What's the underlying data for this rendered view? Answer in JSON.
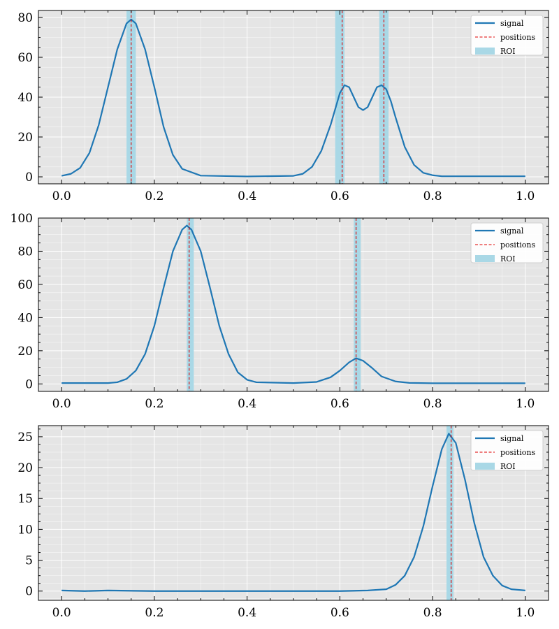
{
  "chart_data": [
    {
      "type": "line",
      "xlim": [
        -0.05,
        1.05
      ],
      "ylim": [
        -3.5,
        83.5
      ],
      "xticks": [
        "0.0",
        "0.2",
        "0.4",
        "0.6",
        "0.8",
        "1.0"
      ],
      "yticks": [
        "0",
        "20",
        "40",
        "60",
        "80"
      ],
      "grid": true,
      "legend": {
        "placement": "top-right",
        "entries": [
          "signal",
          "positions",
          "ROI"
        ]
      },
      "signal": {
        "name": "signal",
        "x": [
          0.0,
          0.02,
          0.04,
          0.06,
          0.08,
          0.1,
          0.12,
          0.14,
          0.15,
          0.16,
          0.18,
          0.2,
          0.22,
          0.24,
          0.26,
          0.3,
          0.4,
          0.5,
          0.52,
          0.54,
          0.56,
          0.58,
          0.59,
          0.6,
          0.61,
          0.62,
          0.63,
          0.64,
          0.65,
          0.66,
          0.67,
          0.68,
          0.69,
          0.7,
          0.71,
          0.72,
          0.74,
          0.76,
          0.78,
          0.8,
          0.82,
          0.9,
          1.0
        ],
        "y": [
          0.5,
          1.5,
          4.5,
          12,
          26,
          45,
          64,
          77,
          79,
          77,
          64,
          45,
          25,
          11,
          4,
          0.6,
          0.2,
          0.5,
          1.5,
          5,
          13,
          26,
          34,
          42,
          46,
          45,
          40,
          35,
          33.5,
          35,
          40,
          45,
          46,
          44,
          38,
          30,
          15,
          6,
          2,
          0.8,
          0.3,
          0.3,
          0.3
        ]
      },
      "positions": [
        0.15,
        0.605,
        0.695
      ],
      "roi": [
        [
          0.14,
          0.16
        ],
        [
          0.59,
          0.61
        ],
        [
          0.685,
          0.705
        ]
      ]
    },
    {
      "type": "line",
      "xlim": [
        -0.05,
        1.05
      ],
      "ylim": [
        -4.5,
        100
      ],
      "xticks": [
        "0.0",
        "0.2",
        "0.4",
        "0.6",
        "0.8",
        "1.0"
      ],
      "yticks": [
        "0",
        "20",
        "40",
        "60",
        "80",
        "100"
      ],
      "grid": true,
      "legend": {
        "placement": "top-right",
        "entries": [
          "signal",
          "positions",
          "ROI"
        ]
      },
      "signal": {
        "name": "signal",
        "x": [
          0.0,
          0.1,
          0.12,
          0.14,
          0.16,
          0.18,
          0.2,
          0.22,
          0.24,
          0.26,
          0.27,
          0.28,
          0.3,
          0.32,
          0.34,
          0.36,
          0.38,
          0.4,
          0.42,
          0.5,
          0.55,
          0.58,
          0.6,
          0.62,
          0.635,
          0.65,
          0.67,
          0.69,
          0.72,
          0.75,
          0.8,
          0.9,
          1.0
        ],
        "y": [
          0.5,
          0.5,
          1,
          3,
          8,
          18,
          35,
          58,
          80,
          93,
          95.5,
          93,
          80,
          58,
          35,
          18,
          7,
          2.5,
          1,
          0.5,
          1.2,
          4,
          8,
          13,
          15.5,
          14,
          9.5,
          4.5,
          1.5,
          0.6,
          0.4,
          0.4,
          0.4
        ]
      },
      "positions": [
        0.275,
        0.635
      ],
      "roi": [
        [
          0.27,
          0.285
        ],
        [
          0.63,
          0.645
        ]
      ]
    },
    {
      "type": "line",
      "xlim": [
        -0.05,
        1.05
      ],
      "ylim": [
        -1.5,
        26.8
      ],
      "xticks": [
        "0.0",
        "0.2",
        "0.4",
        "0.6",
        "0.8",
        "1.0"
      ],
      "yticks": [
        "0",
        "5",
        "10",
        "15",
        "20",
        "25"
      ],
      "grid": true,
      "legend": {
        "placement": "top-right",
        "entries": [
          "signal",
          "positions",
          "ROI"
        ]
      },
      "signal": {
        "name": "signal",
        "x": [
          0.0,
          0.05,
          0.1,
          0.2,
          0.3,
          0.4,
          0.5,
          0.6,
          0.66,
          0.7,
          0.72,
          0.74,
          0.76,
          0.78,
          0.8,
          0.82,
          0.835,
          0.85,
          0.87,
          0.89,
          0.91,
          0.93,
          0.95,
          0.97,
          1.0
        ],
        "y": [
          0.1,
          0,
          0.1,
          0,
          0,
          0,
          0,
          0,
          0.1,
          0.3,
          1,
          2.5,
          5.5,
          10.5,
          17,
          23,
          25.5,
          24,
          18,
          11,
          5.5,
          2.5,
          0.9,
          0.3,
          0.1
        ]
      },
      "positions": [
        0.84
      ],
      "roi": [
        [
          0.83,
          0.845
        ]
      ]
    }
  ],
  "colors": {
    "axes_background": "#e5e5e5",
    "grid": "#ffffff",
    "signal": "#1f77b4",
    "positions": "#e00000",
    "roi": "#a9d8e6"
  }
}
